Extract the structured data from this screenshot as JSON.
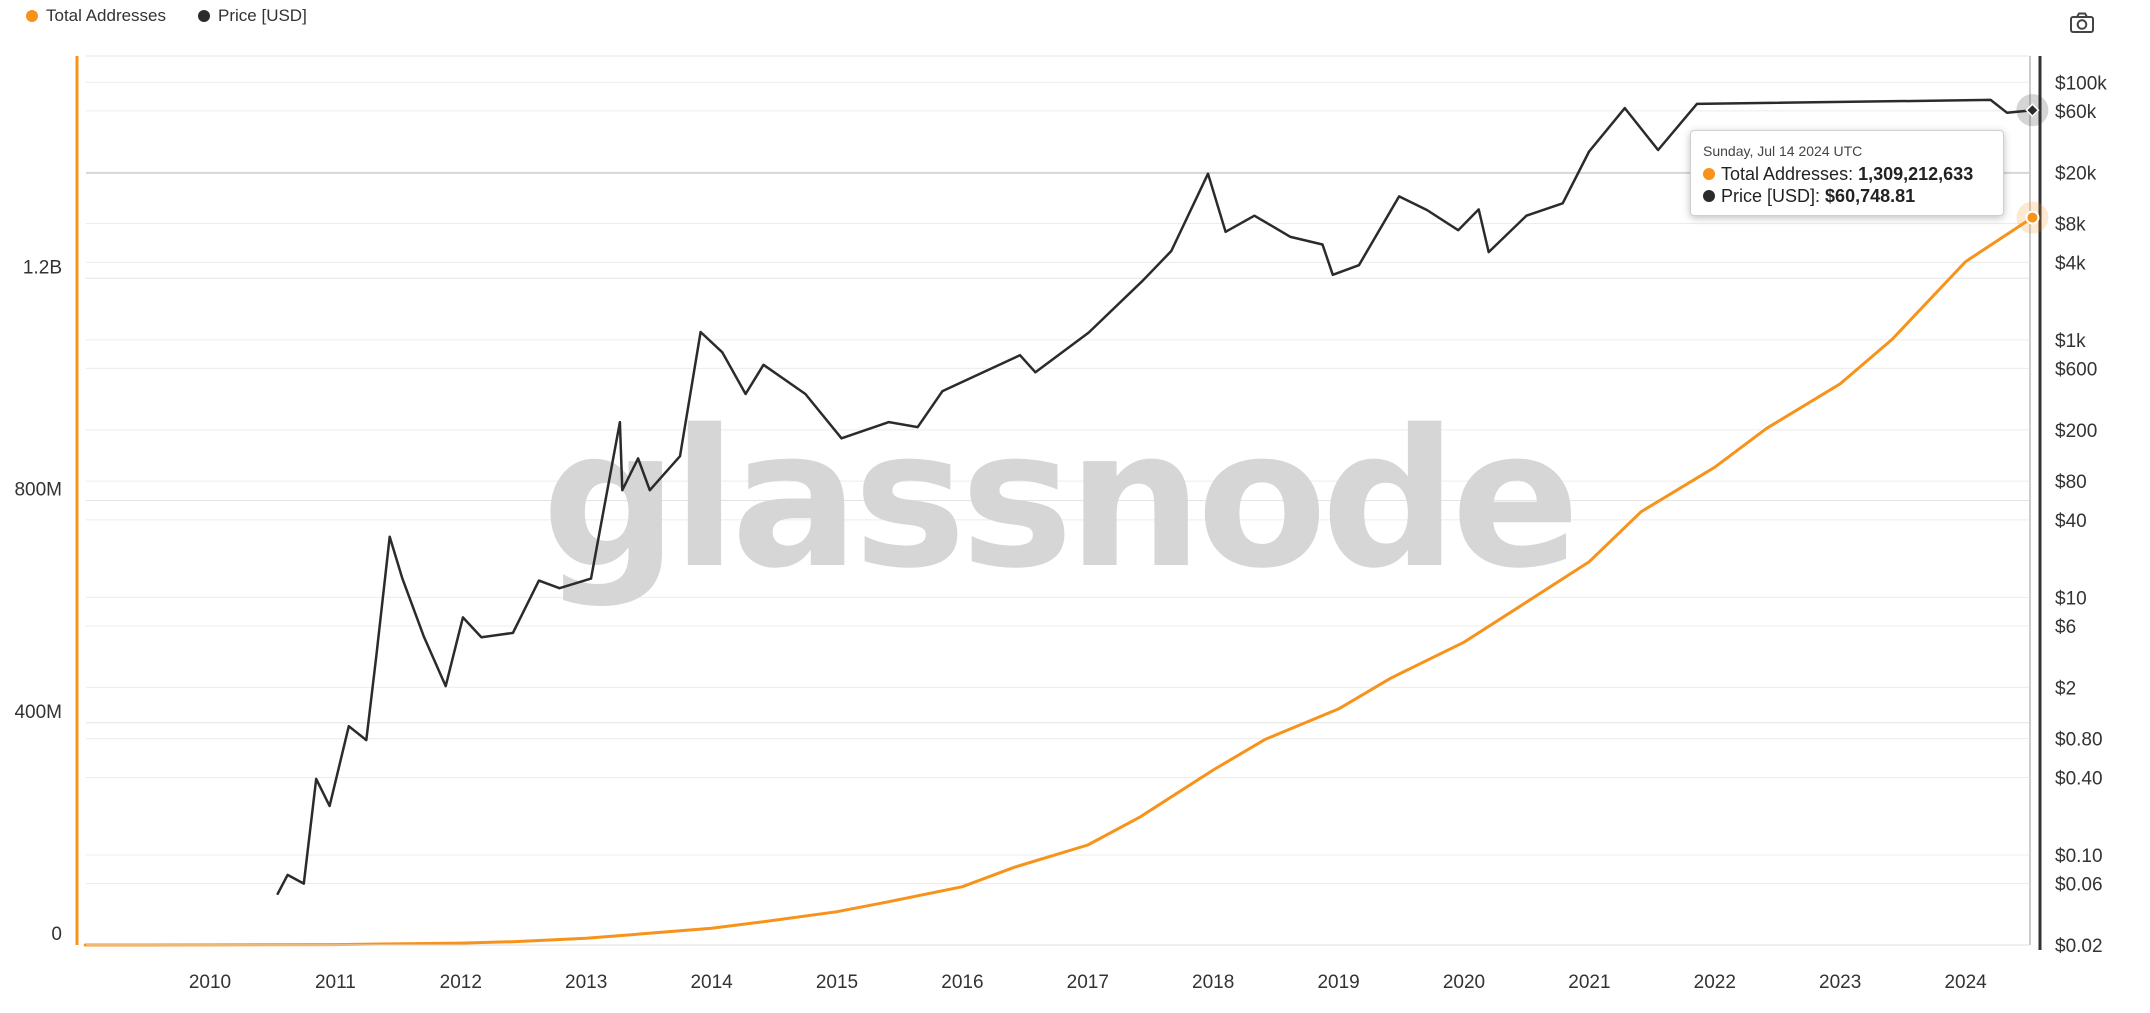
{
  "legend": {
    "items": [
      {
        "label": "Total Addresses",
        "color": "#f7931a"
      },
      {
        "label": "Price [USD]",
        "color": "#2b2b2b"
      }
    ]
  },
  "toolbar": {
    "screenshot_icon": "camera-icon"
  },
  "watermark": "glassnode",
  "tooltip": {
    "date": "Sunday, Jul 14 2024 UTC",
    "series1_label": "Total Addresses",
    "series1_value": "1,309,212,633",
    "series2_label": "Price [USD]",
    "series2_value": "$60,748.81"
  },
  "chart_data": {
    "type": "line",
    "x_tick_labels": [
      "2010",
      "2011",
      "2012",
      "2013",
      "2014",
      "2015",
      "2016",
      "2017",
      "2018",
      "2019",
      "2020",
      "2021",
      "2022",
      "2023",
      "2024"
    ],
    "left_axis": {
      "scale": "linear",
      "range": [
        0,
        1600000000
      ],
      "tick_values": [
        0,
        400000000,
        800000000,
        1200000000
      ],
      "tick_labels": [
        "0",
        "400M",
        "800M",
        "1.2B"
      ]
    },
    "right_axis": {
      "scale": "log",
      "range": [
        0.02,
        160000
      ],
      "tick_values": [
        100000,
        60000,
        20000,
        8000,
        4000,
        1000,
        600,
        200,
        80,
        40,
        10,
        6,
        2,
        0.8,
        0.4,
        0.1,
        0.06,
        0.02
      ],
      "tick_labels": [
        "$100k",
        "$60k",
        "$20k",
        "$8k",
        "$4k",
        "$1k",
        "$600",
        "$200",
        "$80",
        "$40",
        "$10",
        "$6",
        "$2",
        "$0.80",
        "$0.40",
        "$0.10",
        "$0.06",
        "$0.02"
      ]
    },
    "grid": true,
    "legend_position": "top-left",
    "series": [
      {
        "name": "Total Addresses",
        "axis": "left",
        "color": "#f7931a",
        "points": [
          [
            "2009-01-03",
            0
          ],
          [
            "2010-01-01",
            100000
          ],
          [
            "2011-01-01",
            700000
          ],
          [
            "2012-01-01",
            3500000
          ],
          [
            "2012-06-01",
            6000000
          ],
          [
            "2013-01-01",
            12000000
          ],
          [
            "2014-01-01",
            30000000
          ],
          [
            "2014-06-01",
            42000000
          ],
          [
            "2015-01-01",
            60000000
          ],
          [
            "2015-06-01",
            78000000
          ],
          [
            "2016-01-01",
            105000000
          ],
          [
            "2016-06-01",
            140000000
          ],
          [
            "2017-01-01",
            180000000
          ],
          [
            "2017-06-01",
            230000000
          ],
          [
            "2018-01-01",
            315000000
          ],
          [
            "2018-06-01",
            370000000
          ],
          [
            "2019-01-01",
            425000000
          ],
          [
            "2019-06-01",
            480000000
          ],
          [
            "2020-01-01",
            545000000
          ],
          [
            "2020-06-01",
            605000000
          ],
          [
            "2021-01-01",
            690000000
          ],
          [
            "2021-06-01",
            780000000
          ],
          [
            "2022-01-01",
            860000000
          ],
          [
            "2022-06-01",
            930000000
          ],
          [
            "2023-01-01",
            1010000000
          ],
          [
            "2023-06-01",
            1090000000
          ],
          [
            "2024-01-01",
            1230000000
          ],
          [
            "2024-07-14",
            1309212633
          ]
        ]
      },
      {
        "name": "Price [USD]",
        "axis": "right",
        "color": "#2b2b2b",
        "points": [
          [
            "2010-07-17",
            0.05
          ],
          [
            "2010-08-15",
            0.07
          ],
          [
            "2010-10-01",
            0.06
          ],
          [
            "2010-11-06",
            0.39
          ],
          [
            "2010-12-15",
            0.24
          ],
          [
            "2011-02-09",
            1.0
          ],
          [
            "2011-04-01",
            0.78
          ],
          [
            "2011-04-30",
            3.5
          ],
          [
            "2011-06-08",
            29.6
          ],
          [
            "2011-07-15",
            14.0
          ],
          [
            "2011-09-15",
            5.0
          ],
          [
            "2011-11-18",
            2.05
          ],
          [
            "2012-01-07",
            7.0
          ],
          [
            "2012-03-01",
            4.9
          ],
          [
            "2012-06-01",
            5.3
          ],
          [
            "2012-08-16",
            13.5
          ],
          [
            "2012-10-15",
            11.8
          ],
          [
            "2013-01-15",
            14.0
          ],
          [
            "2013-04-09",
            230.0
          ],
          [
            "2013-04-16",
            68.0
          ],
          [
            "2013-06-01",
            120.0
          ],
          [
            "2013-07-05",
            68.0
          ],
          [
            "2013-10-01",
            125.0
          ],
          [
            "2013-11-30",
            1150.0
          ],
          [
            "2014-02-01",
            800.0
          ],
          [
            "2014-04-10",
            380.0
          ],
          [
            "2014-06-01",
            640.0
          ],
          [
            "2014-10-01",
            380.0
          ],
          [
            "2015-01-14",
            172.0
          ],
          [
            "2015-06-01",
            230.0
          ],
          [
            "2015-08-24",
            210.0
          ],
          [
            "2015-11-04",
            400.0
          ],
          [
            "2016-06-17",
            760.0
          ],
          [
            "2016-08-01",
            560.0
          ],
          [
            "2017-01-04",
            1140.0
          ],
          [
            "2017-06-11",
            2900.0
          ],
          [
            "2017-09-01",
            4900.0
          ],
          [
            "2017-12-17",
            19500.0
          ],
          [
            "2018-02-06",
            6900.0
          ],
          [
            "2018-05-01",
            9200.0
          ],
          [
            "2018-08-14",
            6300.0
          ],
          [
            "2018-11-15",
            5500.0
          ],
          [
            "2018-12-15",
            3200.0
          ],
          [
            "2019-03-01",
            3800.0
          ],
          [
            "2019-06-26",
            13000.0
          ],
          [
            "2019-09-15",
            10200.0
          ],
          [
            "2019-12-15",
            7100.0
          ],
          [
            "2020-02-13",
            10300.0
          ],
          [
            "2020-03-13",
            4800.0
          ],
          [
            "2020-07-01",
            9200.0
          ],
          [
            "2020-10-15",
            11500.0
          ],
          [
            "2020-12-31",
            29000.0
          ],
          [
            "2021-04-14",
            63000.0
          ],
          [
            "2021-07-20",
            29800.0
          ],
          [
            "2021-11-10",
            68000.0
          ],
          [
            "2024-03-14",
            73000.0
          ],
          [
            "2024-05-01",
            58000.0
          ],
          [
            "2024-07-14",
            60748.81
          ]
        ]
      }
    ]
  }
}
